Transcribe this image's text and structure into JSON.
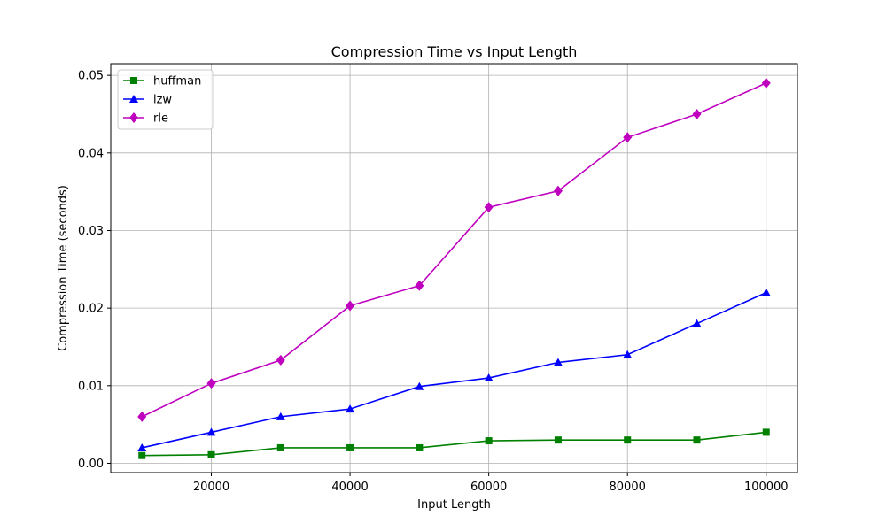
{
  "chart_data": {
    "type": "line",
    "title": "Compression Time vs Input Length",
    "xlabel": "Input Length",
    "ylabel": "Compression Time (seconds)",
    "x": [
      10000,
      20000,
      30000,
      40000,
      50000,
      60000,
      70000,
      80000,
      90000,
      100000
    ],
    "xlim": [
      5500,
      104500
    ],
    "ylim": [
      -0.0012,
      0.0515
    ],
    "xticks": [
      20000,
      40000,
      60000,
      80000,
      100000
    ],
    "yticks": [
      0.0,
      0.01,
      0.02,
      0.03,
      0.04,
      0.05
    ],
    "xtick_labels": [
      "20000",
      "40000",
      "60000",
      "80000",
      "100000"
    ],
    "ytick_labels": [
      "0.00",
      "0.01",
      "0.02",
      "0.03",
      "0.04",
      "0.05"
    ],
    "grid": true,
    "legend_position": "top-left",
    "series": [
      {
        "name": "huffman",
        "color": "#008000",
        "marker": "square",
        "values": [
          0.001,
          0.0011,
          0.002,
          0.002,
          0.002,
          0.0029,
          0.003,
          0.003,
          0.003,
          0.004
        ]
      },
      {
        "name": "lzw",
        "color": "#0000ff",
        "marker": "triangle",
        "values": [
          0.002,
          0.004,
          0.006,
          0.007,
          0.0099,
          0.011,
          0.013,
          0.014,
          0.018,
          0.022
        ]
      },
      {
        "name": "rle",
        "color": "#bf00bf",
        "marker": "diamond",
        "values": [
          0.006,
          0.0103,
          0.0133,
          0.0203,
          0.0229,
          0.033,
          0.0351,
          0.042,
          0.045,
          0.049
        ]
      }
    ]
  }
}
